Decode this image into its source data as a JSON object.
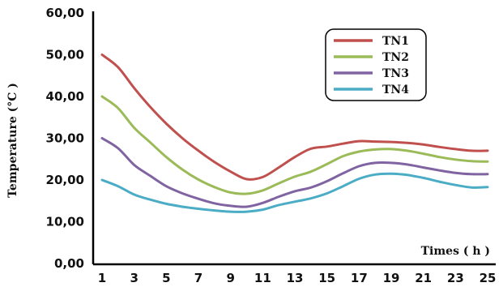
{
  "chart_data": {
    "type": "line",
    "xlabel": "Times ( h )",
    "ylabel": "Temperature (°C )",
    "ylim": [
      0,
      60
    ],
    "yticks": [
      "0,00",
      "10,00",
      "20,00",
      "30,00",
      "40,00",
      "50,00",
      "60,00"
    ],
    "xlim": [
      1,
      25
    ],
    "xticks": [
      "1",
      "3",
      "5",
      "7",
      "9",
      "11",
      "13",
      "15",
      "17",
      "19",
      "21",
      "23",
      "25"
    ],
    "grid": false,
    "legend_position": "top-right",
    "x": [
      1,
      2,
      3,
      4,
      5,
      6,
      7,
      8,
      9,
      10,
      11,
      12,
      13,
      14,
      15,
      16,
      17,
      18,
      19,
      20,
      21,
      22,
      23,
      24,
      25
    ],
    "series": [
      {
        "name": "TN1",
        "color": "#c0504d",
        "values": [
          50,
          47,
          42,
          37.5,
          33.5,
          30,
          27,
          24.3,
          22,
          20.2,
          20.7,
          23,
          25.5,
          27.5,
          28,
          28.7,
          29.3,
          29.2,
          29.1,
          28.9,
          28.5,
          27.9,
          27.4,
          27,
          27
        ]
      },
      {
        "name": "TN2",
        "color": "#9bbb59",
        "values": [
          40,
          37.2,
          32.5,
          29,
          25.5,
          22.5,
          20.1,
          18.3,
          17,
          16.7,
          17.5,
          19.2,
          20.8,
          22,
          23.8,
          25.7,
          26.8,
          27.3,
          27.4,
          27,
          26.3,
          25.5,
          24.9,
          24.5,
          24.4
        ]
      },
      {
        "name": "TN3",
        "color": "#8064a2",
        "values": [
          30,
          27.6,
          23.6,
          21,
          18.5,
          16.8,
          15.5,
          14.4,
          13.8,
          13.6,
          14.5,
          16,
          17.3,
          18.2,
          19.7,
          21.6,
          23.3,
          24.1,
          24.1,
          23.7,
          23,
          22.3,
          21.7,
          21.4,
          21.4
        ]
      },
      {
        "name": "TN4",
        "color": "#4bacc6",
        "values": [
          20,
          18.5,
          16.5,
          15.3,
          14.3,
          13.6,
          13.1,
          12.7,
          12.4,
          12.4,
          12.9,
          14,
          14.8,
          15.6,
          16.8,
          18.5,
          20.3,
          21.3,
          21.5,
          21.2,
          20.5,
          19.6,
          18.8,
          18.2,
          18.3
        ]
      }
    ]
  }
}
